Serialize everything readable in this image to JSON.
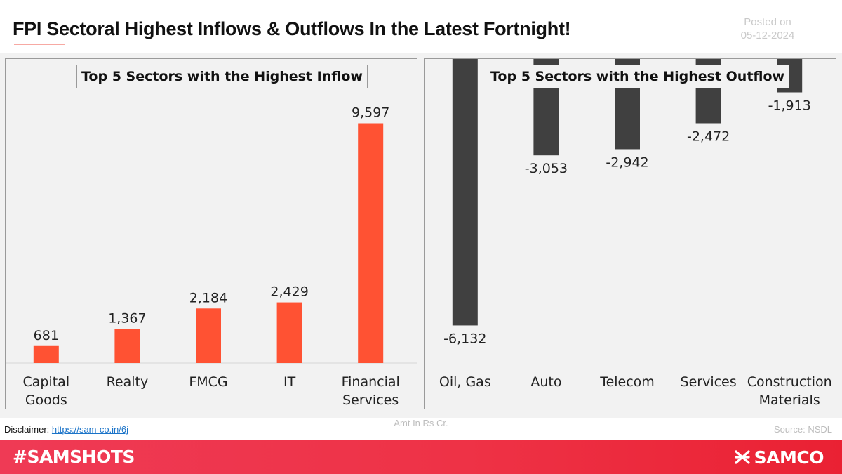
{
  "header": {
    "title": "FPI Sectoral Highest Inflows & Outflows In the Latest Fortnight!",
    "posted_label": "Posted on",
    "posted_date": "05-12-2024"
  },
  "colors": {
    "inflow_bar": "#ff5233",
    "outflow_bar": "#404040",
    "brand_red": "#ee3246"
  },
  "chart_data": [
    {
      "type": "bar",
      "title": "Top 5 Sectors with the Highest Inflow",
      "categories": [
        "Capital Goods",
        "Realty",
        "FMCG",
        "IT",
        "Financial Services"
      ],
      "values": [
        681,
        1367,
        2184,
        2429,
        9597
      ],
      "value_labels": [
        "681",
        "1,367",
        "2,184",
        "2,429",
        "9,597"
      ],
      "ylim": [
        0,
        12000
      ],
      "grid": false,
      "legend": "none"
    },
    {
      "type": "bar",
      "title": "Top 5 Sectors with the Highest Outflow",
      "categories": [
        "Oil, Gas",
        "Auto",
        "Telecom",
        "Services",
        "Construction Materials"
      ],
      "values": [
        -6132,
        -3053,
        -2942,
        -2472,
        -1913
      ],
      "value_labels": [
        "-6,132",
        "-3,053",
        "-2,942",
        "-2,472",
        "-1,913"
      ],
      "ylim": [
        -6800,
        0
      ],
      "grid": false,
      "legend": "none"
    }
  ],
  "footer": {
    "disclaimer_label": "Disclaimer:",
    "disclaimer_link": "https://sam-co.in/6j",
    "unit_note": "Amt In Rs Cr.",
    "source": "Source: NSDL"
  },
  "brand": {
    "hashtag": "#SAMSHOTS",
    "logo_text": "SAMCO",
    "logo_icon": "samco-logo-icon"
  }
}
